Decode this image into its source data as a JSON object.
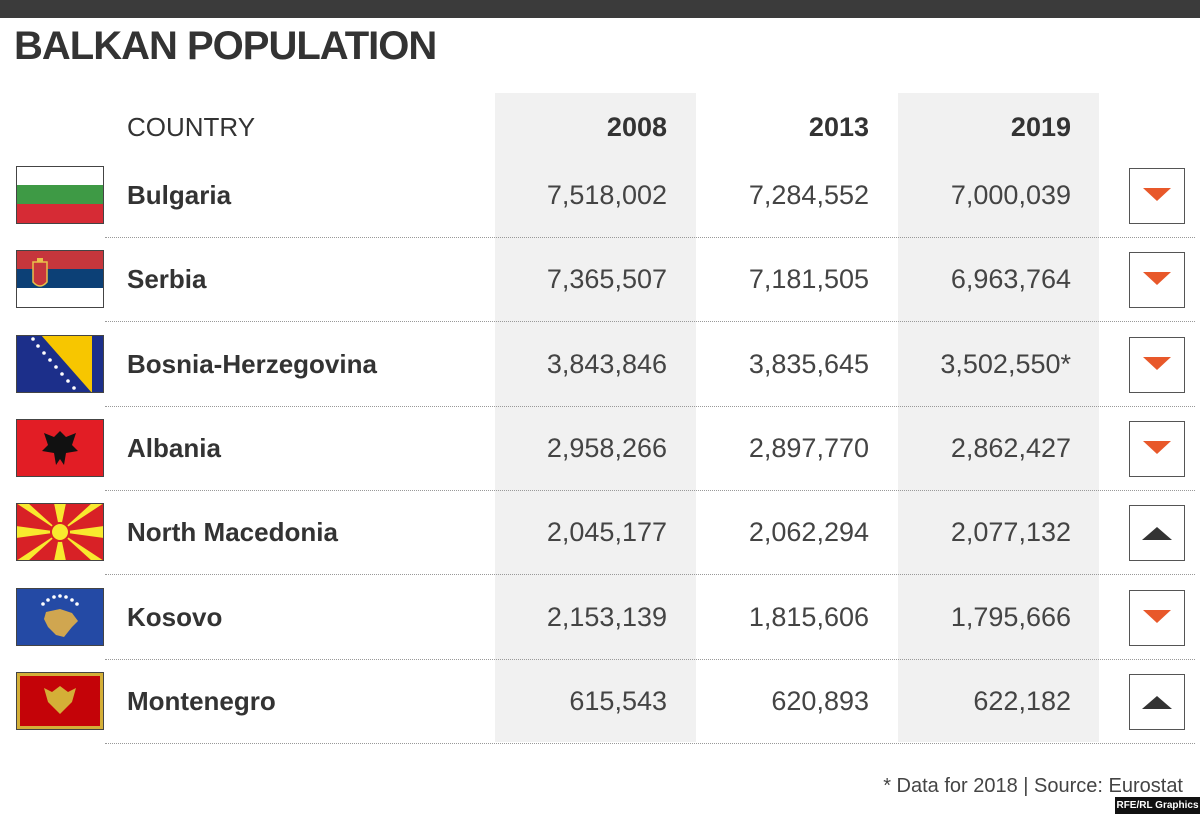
{
  "header": {
    "title": "BALKAN POPULATION"
  },
  "table": {
    "columns": [
      "COUNTRY",
      "2008",
      "2013",
      "2019"
    ],
    "rows": [
      {
        "country": "Bulgaria",
        "values": [
          "7,518,002",
          "7,284,552",
          "7,000,039"
        ],
        "trend": "down"
      },
      {
        "country": "Serbia",
        "values": [
          "7,365,507",
          "7,181,505",
          "6,963,764"
        ],
        "trend": "down"
      },
      {
        "country": "Bosnia-Herzegovina",
        "values": [
          "3,843,846",
          "3,835,645",
          "3,502,550*"
        ],
        "trend": "down"
      },
      {
        "country": "Albania",
        "values": [
          "2,958,266",
          "2,897,770",
          "2,862,427"
        ],
        "trend": "down"
      },
      {
        "country": "North Macedonia",
        "values": [
          "2,045,177",
          "2,062,294",
          "2,077,132"
        ],
        "trend": "up"
      },
      {
        "country": "Kosovo",
        "values": [
          "2,153,139",
          "1,815,606",
          "1,795,666"
        ],
        "trend": "down"
      },
      {
        "country": "Montenegro",
        "values": [
          "615,543",
          "620,893",
          "622,182"
        ],
        "trend": "up"
      }
    ]
  },
  "footer": {
    "note": "* Data for 2018 | Source: Eurostat",
    "credit": "RFE/RL Graphics"
  }
}
